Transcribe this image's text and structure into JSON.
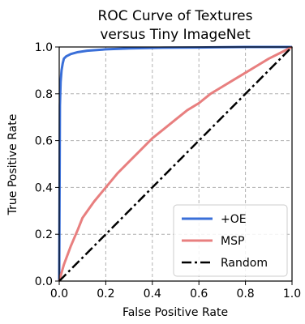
{
  "chart_data": {
    "type": "line",
    "title": [
      "ROC Curve of Textures",
      "versus Tiny ImageNet"
    ],
    "xlabel": "False Positive Rate",
    "ylabel": "True Positive Rate",
    "xlim": [
      0.0,
      1.0
    ],
    "ylim": [
      0.0,
      1.0
    ],
    "xticks": [
      0.0,
      0.2,
      0.4,
      0.6,
      0.8,
      1.0
    ],
    "yticks": [
      0.0,
      0.2,
      0.4,
      0.6,
      0.8,
      1.0
    ],
    "xtick_labels": [
      "0.0",
      "0.2",
      "0.4",
      "0.6",
      "0.8",
      "1.0"
    ],
    "ytick_labels": [
      "0.0",
      "0.2",
      "0.4",
      "0.6",
      "0.8",
      "1.0"
    ],
    "grid": true,
    "legend_position": "bottom-right",
    "series": [
      {
        "name": "+OE",
        "color": "#3a6fd8",
        "style": "solid",
        "x": [
          0,
          0.003,
          0.006,
          0.01,
          0.015,
          0.02,
          0.03,
          0.05,
          0.08,
          0.12,
          0.2,
          0.3,
          0.45,
          0.6,
          0.8,
          1.0
        ],
        "y": [
          0,
          0.75,
          0.85,
          0.9,
          0.93,
          0.95,
          0.96,
          0.97,
          0.978,
          0.984,
          0.99,
          0.994,
          0.997,
          0.998,
          1.0,
          1.0
        ]
      },
      {
        "name": "MSP",
        "color": "#e87f7f",
        "style": "solid",
        "x": [
          0,
          0.02,
          0.05,
          0.08,
          0.1,
          0.15,
          0.2,
          0.25,
          0.3,
          0.35,
          0.4,
          0.45,
          0.5,
          0.55,
          0.6,
          0.65,
          0.7,
          0.75,
          0.8,
          0.85,
          0.9,
          0.95,
          1.0
        ],
        "y": [
          0,
          0.07,
          0.15,
          0.22,
          0.27,
          0.34,
          0.4,
          0.46,
          0.51,
          0.56,
          0.61,
          0.65,
          0.69,
          0.73,
          0.76,
          0.8,
          0.83,
          0.86,
          0.89,
          0.92,
          0.95,
          0.975,
          1.0
        ]
      },
      {
        "name": "Random",
        "color": "#000000",
        "style": "dashdot",
        "x": [
          0,
          1.0
        ],
        "y": [
          0,
          1.0
        ]
      }
    ]
  }
}
